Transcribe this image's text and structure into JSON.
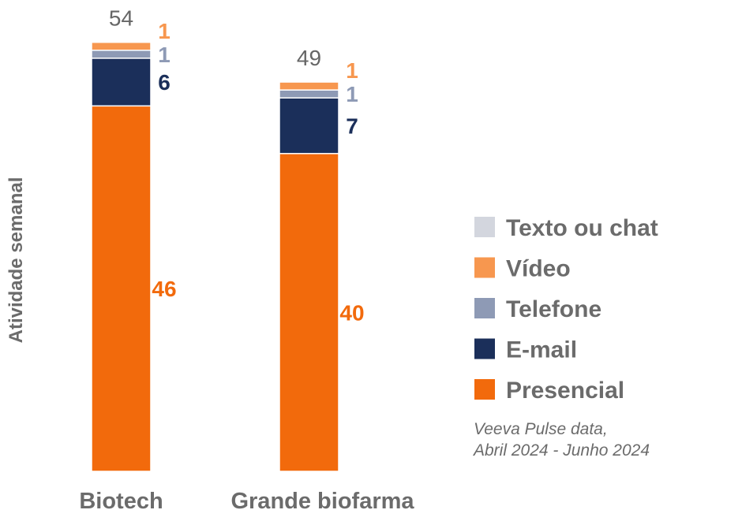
{
  "chart_data": {
    "type": "bar",
    "stacked": true,
    "ylabel": "Atividade semanal",
    "categories": [
      "Biotech",
      "Grande biofarma"
    ],
    "totals": [
      "54",
      "49"
    ],
    "series": [
      {
        "name": "Presencial",
        "color": "#f26a0c",
        "label_color": "#f26a0c",
        "values": [
          46,
          40
        ]
      },
      {
        "name": "E-mail",
        "color": "#1b2f5a",
        "label_color": "#1b2f5a",
        "values": [
          6,
          7
        ]
      },
      {
        "name": "Telefone",
        "color": "#8e9ab5",
        "label_color": "#8e9ab5",
        "values": [
          1,
          1
        ]
      },
      {
        "name": "Vídeo",
        "color": "#f7974f",
        "label_color": "#f7974f",
        "values": [
          1,
          1
        ]
      },
      {
        "name": "Texto ou chat",
        "color": "#d3d6de",
        "label_color": "#d3d6de",
        "values": [
          0,
          0
        ]
      }
    ],
    "legend": {
      "placement": "right",
      "order": [
        "Texto ou chat",
        "Vídeo",
        "Telefone",
        "E-mail",
        "Presencial"
      ]
    },
    "grid": false
  },
  "source": {
    "line1": "Veeva Pulse data,",
    "line2": "Abril 2024 - Junho 2024"
  }
}
